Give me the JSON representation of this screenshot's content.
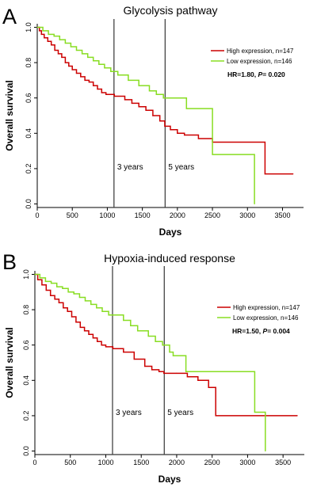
{
  "chart_data": [
    {
      "type": "line",
      "panel_label": "A",
      "title": "Glycolysis pathway",
      "xlabel": "Days",
      "ylabel": "Overall survival",
      "xlim": [
        0,
        3800
      ],
      "ylim": [
        -0.02,
        1.02
      ],
      "x_ticks": [
        "0",
        "500",
        "1000",
        "1500",
        "2000",
        "2500",
        "3000",
        "3500"
      ],
      "y_ticks": [
        "0.0",
        "0.2",
        "0.4",
        "0.6",
        "0.8",
        "1.0"
      ],
      "grid": false,
      "legend_position": "top-right",
      "series": [
        {
          "name": "High expression, n=147",
          "color": "#cc0000",
          "points": [
            [
              0,
              1.0
            ],
            [
              30,
              0.98
            ],
            [
              60,
              0.96
            ],
            [
              100,
              0.94
            ],
            [
              150,
              0.92
            ],
            [
              200,
              0.9
            ],
            [
              250,
              0.87
            ],
            [
              300,
              0.85
            ],
            [
              350,
              0.83
            ],
            [
              400,
              0.8
            ],
            [
              450,
              0.78
            ],
            [
              500,
              0.76
            ],
            [
              560,
              0.74
            ],
            [
              620,
              0.72
            ],
            [
              680,
              0.7
            ],
            [
              740,
              0.69
            ],
            [
              800,
              0.67
            ],
            [
              860,
              0.65
            ],
            [
              920,
              0.63
            ],
            [
              980,
              0.62
            ],
            [
              1100,
              0.61
            ],
            [
              1250,
              0.59
            ],
            [
              1350,
              0.57
            ],
            [
              1450,
              0.55
            ],
            [
              1550,
              0.53
            ],
            [
              1650,
              0.5
            ],
            [
              1750,
              0.47
            ],
            [
              1820,
              0.44
            ],
            [
              1900,
              0.42
            ],
            [
              2000,
              0.4
            ],
            [
              2100,
              0.39
            ],
            [
              2300,
              0.37
            ],
            [
              2500,
              0.35
            ],
            [
              3250,
              0.35
            ],
            [
              3250,
              0.17
            ],
            [
              3650,
              0.17
            ]
          ]
        },
        {
          "name": "Low expression, n=146",
          "color": "#88dd22",
          "points": [
            [
              0,
              1.0
            ],
            [
              80,
              0.98
            ],
            [
              160,
              0.96
            ],
            [
              240,
              0.95
            ],
            [
              320,
              0.93
            ],
            [
              400,
              0.91
            ],
            [
              480,
              0.89
            ],
            [
              560,
              0.87
            ],
            [
              640,
              0.85
            ],
            [
              720,
              0.83
            ],
            [
              800,
              0.81
            ],
            [
              880,
              0.79
            ],
            [
              960,
              0.77
            ],
            [
              1050,
              0.75
            ],
            [
              1150,
              0.73
            ],
            [
              1300,
              0.7
            ],
            [
              1450,
              0.67
            ],
            [
              1600,
              0.64
            ],
            [
              1700,
              0.62
            ],
            [
              1800,
              0.6
            ],
            [
              2130,
              0.6
            ],
            [
              2130,
              0.54
            ],
            [
              2500,
              0.54
            ],
            [
              2500,
              0.28
            ],
            [
              3100,
              0.28
            ],
            [
              3100,
              0.0
            ]
          ]
        }
      ],
      "vlines": [
        {
          "x": 1095,
          "label": "3 years"
        },
        {
          "x": 1825,
          "label": "5 years"
        }
      ],
      "annotation": {
        "pre": "HR=1.80, ",
        "p_label": "P",
        "post": "= 0.020"
      }
    },
    {
      "type": "line",
      "panel_label": "B",
      "title": "Hypoxia-induced response",
      "xlabel": "Days",
      "ylabel": "Overall survival",
      "xlim": [
        0,
        3800
      ],
      "ylim": [
        -0.02,
        1.02
      ],
      "x_ticks": [
        "0",
        "500",
        "1000",
        "1500",
        "2000",
        "2500",
        "3000",
        "3500"
      ],
      "y_ticks": [
        "0.0",
        "0.2",
        "0.4",
        "0.6",
        "0.8",
        "1.0"
      ],
      "grid": false,
      "legend_position": "top-right",
      "series": [
        {
          "name": "High expression, n=147",
          "color": "#cc0000",
          "points": [
            [
              0,
              1.0
            ],
            [
              40,
              0.97
            ],
            [
              100,
              0.94
            ],
            [
              160,
              0.91
            ],
            [
              220,
              0.88
            ],
            [
              280,
              0.86
            ],
            [
              340,
              0.84
            ],
            [
              400,
              0.81
            ],
            [
              460,
              0.79
            ],
            [
              520,
              0.76
            ],
            [
              580,
              0.73
            ],
            [
              640,
              0.7
            ],
            [
              700,
              0.68
            ],
            [
              760,
              0.66
            ],
            [
              820,
              0.64
            ],
            [
              880,
              0.62
            ],
            [
              940,
              0.6
            ],
            [
              1000,
              0.59
            ],
            [
              1100,
              0.58
            ],
            [
              1250,
              0.56
            ],
            [
              1400,
              0.52
            ],
            [
              1550,
              0.48
            ],
            [
              1650,
              0.46
            ],
            [
              1750,
              0.45
            ],
            [
              1820,
              0.44
            ],
            [
              2000,
              0.44
            ],
            [
              2150,
              0.42
            ],
            [
              2300,
              0.4
            ],
            [
              2450,
              0.36
            ],
            [
              2550,
              0.2
            ],
            [
              3700,
              0.2
            ]
          ]
        },
        {
          "name": "Low expression, n=146",
          "color": "#88dd22",
          "points": [
            [
              0,
              1.0
            ],
            [
              70,
              0.98
            ],
            [
              150,
              0.96
            ],
            [
              230,
              0.95
            ],
            [
              310,
              0.93
            ],
            [
              390,
              0.92
            ],
            [
              470,
              0.9
            ],
            [
              550,
              0.89
            ],
            [
              630,
              0.87
            ],
            [
              710,
              0.85
            ],
            [
              790,
              0.83
            ],
            [
              870,
              0.81
            ],
            [
              950,
              0.79
            ],
            [
              1040,
              0.77
            ],
            [
              1250,
              0.74
            ],
            [
              1350,
              0.71
            ],
            [
              1450,
              0.68
            ],
            [
              1600,
              0.65
            ],
            [
              1700,
              0.62
            ],
            [
              1800,
              0.6
            ],
            [
              1900,
              0.56
            ],
            [
              1950,
              0.54
            ],
            [
              2130,
              0.54
            ],
            [
              2130,
              0.45
            ],
            [
              3100,
              0.45
            ],
            [
              3100,
              0.22
            ],
            [
              3250,
              0.22
            ],
            [
              3250,
              0.0
            ]
          ]
        }
      ],
      "vlines": [
        {
          "x": 1095,
          "label": "3 years"
        },
        {
          "x": 1825,
          "label": "5 years"
        }
      ],
      "annotation": {
        "pre": "HR=1.50, ",
        "p_label": "P",
        "post": "= 0.004"
      }
    }
  ]
}
